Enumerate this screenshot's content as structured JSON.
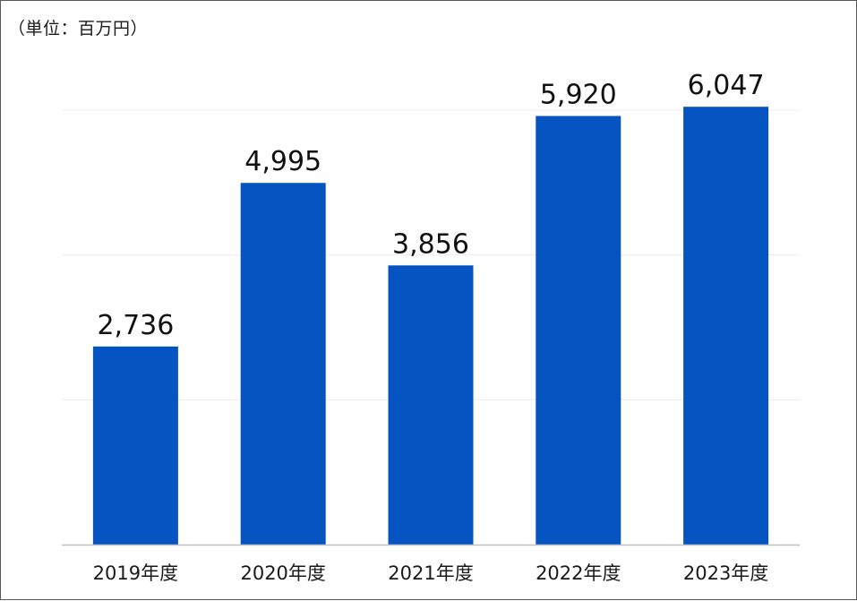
{
  "chart_data": {
    "type": "bar",
    "unit_label": "（単位：百万円）",
    "categories": [
      "2019年度",
      "2020年度",
      "2021年度",
      "2022年度",
      "2023年度"
    ],
    "values": [
      2736,
      4995,
      3856,
      5920,
      6047
    ],
    "data_labels": [
      "2,736",
      "4,995",
      "3,856",
      "5,920",
      "6,047"
    ],
    "ylim": [
      0,
      6000
    ],
    "grid": true,
    "legend": "none",
    "colors": {
      "bar": "#0554C2",
      "grid": "#ececec",
      "axis": "#bfbfbf"
    }
  }
}
